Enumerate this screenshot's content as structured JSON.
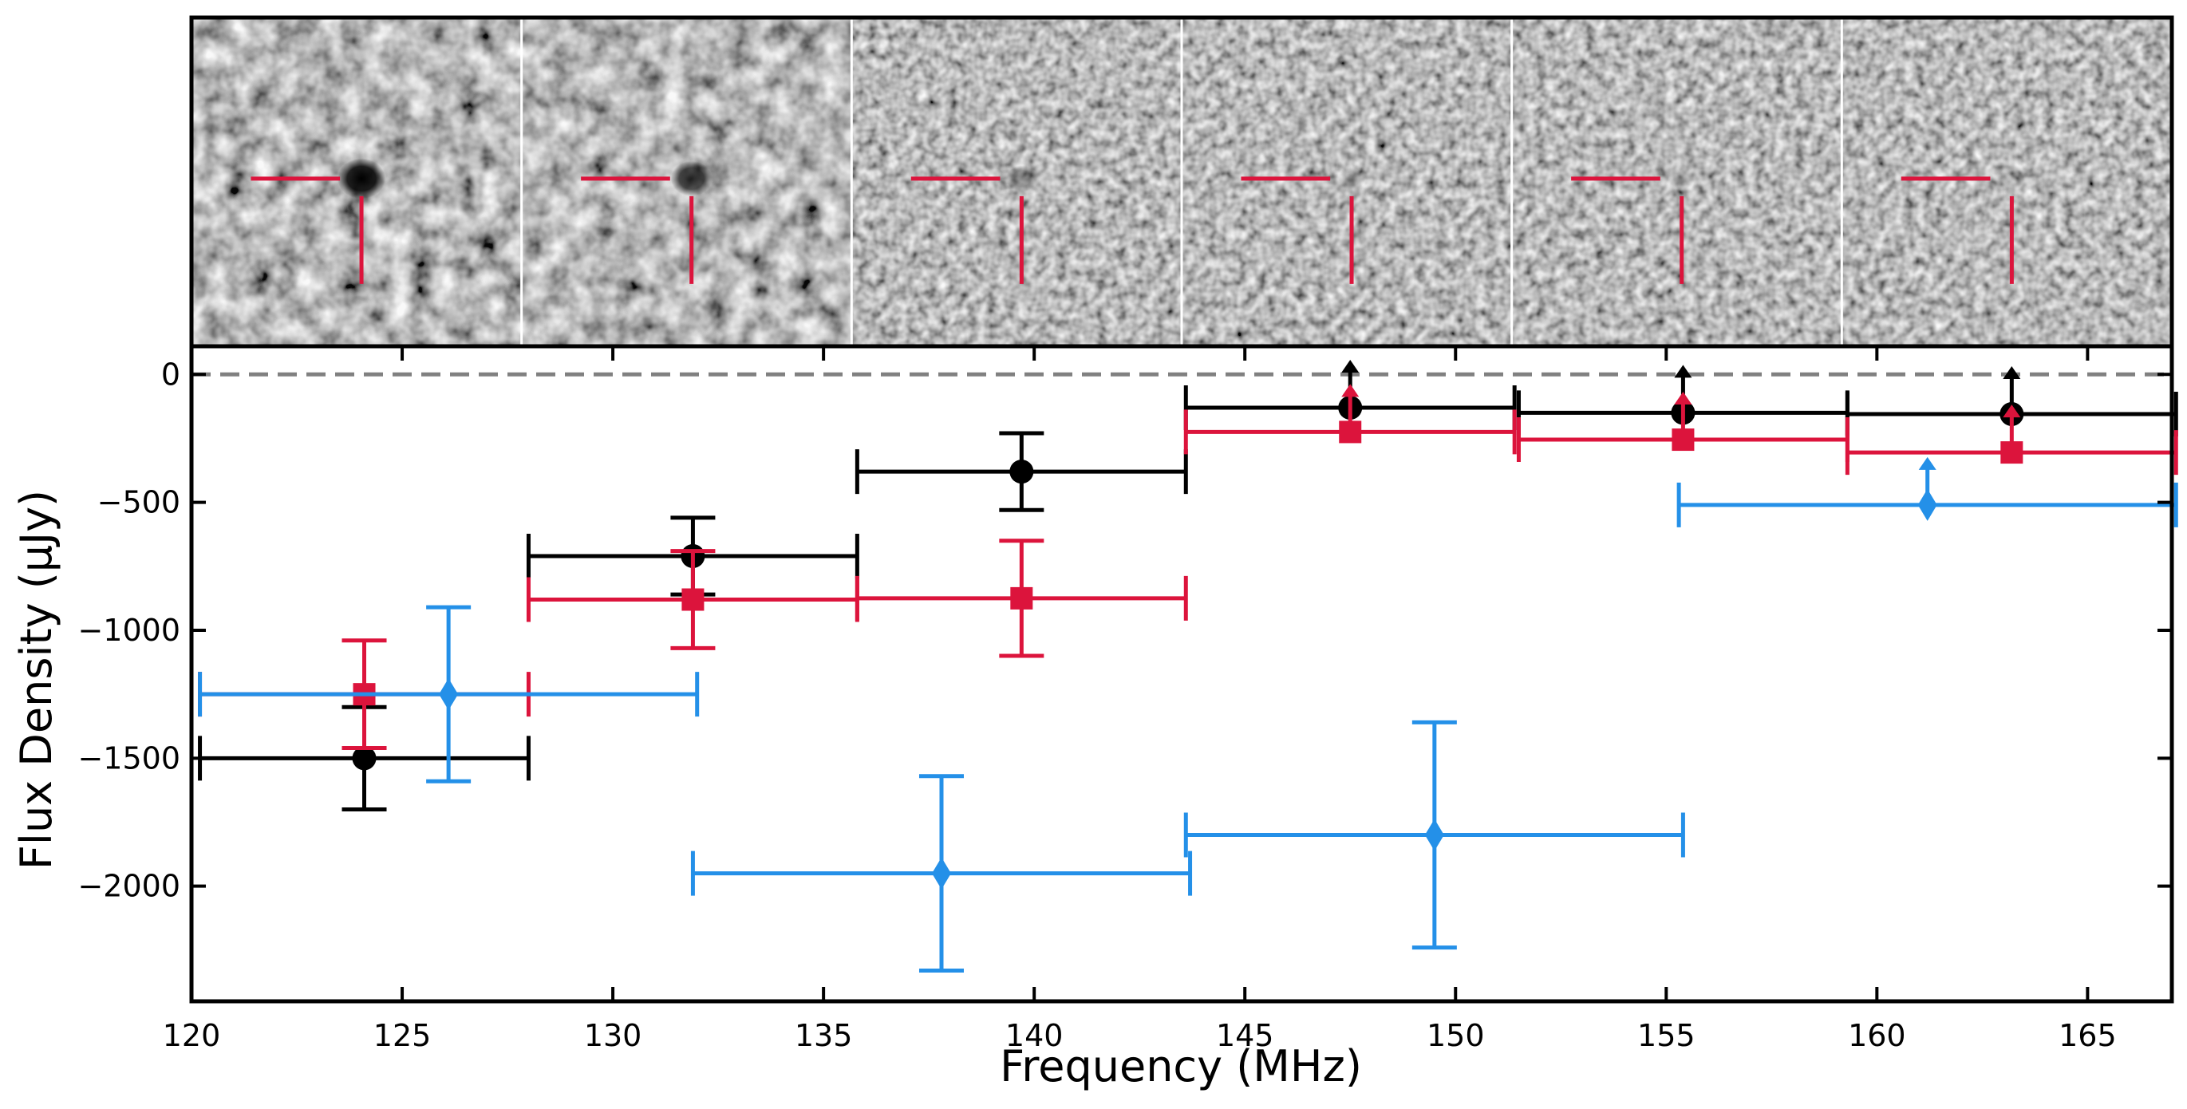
{
  "chart_data": {
    "type": "scatter",
    "title": "",
    "xlabel": "Frequency (MHz)",
    "ylabel": "Flux Density (μJy)",
    "xlim": [
      120,
      167
    ],
    "ylim": [
      -2450,
      110
    ],
    "xticks": [
      120,
      125,
      130,
      135,
      140,
      145,
      150,
      155,
      160,
      165
    ],
    "yticks": [
      0,
      -500,
      -1000,
      -1500,
      -2000
    ],
    "xtick_labels": [
      "120",
      "125",
      "130",
      "135",
      "140",
      "145",
      "150",
      "155",
      "160",
      "165"
    ],
    "ytick_labels": [
      "0",
      "−500",
      "−1000",
      "−1500",
      "−2000"
    ],
    "zero_line": 0,
    "grid": false,
    "legend": "none",
    "series": [
      {
        "color": "#000000",
        "marker": "circle",
        "points": [
          {
            "x": 124.1,
            "y": -1500,
            "xerr": 3.9,
            "yerr_low": 200,
            "yerr_high": 200
          },
          {
            "x": 131.9,
            "y": -710,
            "xerr": 3.9,
            "yerr_low": 150,
            "yerr_high": 150
          },
          {
            "x": 139.7,
            "y": -380,
            "xerr": 3.9,
            "yerr_low": 150,
            "yerr_high": 150
          },
          {
            "x": 147.5,
            "y": -130,
            "xerr": 3.9,
            "upper_limit": true
          },
          {
            "x": 155.4,
            "y": -150,
            "xerr": 3.9,
            "upper_limit": true
          },
          {
            "x": 163.2,
            "y": -155,
            "xerr": 3.9,
            "upper_limit": true
          }
        ]
      },
      {
        "color": "#dc143c",
        "marker": "square",
        "points": [
          {
            "x": 124.1,
            "y": -1250,
            "xerr": 3.9,
            "yerr_low": 210,
            "yerr_high": 210
          },
          {
            "x": 131.9,
            "y": -880,
            "xerr": 3.9,
            "yerr_low": 190,
            "yerr_high": 190
          },
          {
            "x": 139.7,
            "y": -875,
            "xerr": 3.9,
            "yerr_low": 225,
            "yerr_high": 225
          },
          {
            "x": 147.5,
            "y": -225,
            "xerr": 3.9,
            "upper_limit": true
          },
          {
            "x": 155.4,
            "y": -255,
            "xerr": 3.9,
            "upper_limit": true
          },
          {
            "x": 163.2,
            "y": -305,
            "xerr": 3.9,
            "upper_limit": true
          }
        ]
      },
      {
        "color": "#2490e8",
        "marker": "diamond",
        "points": [
          {
            "x": 126.1,
            "y": -1250,
            "xerr": 5.9,
            "yerr_low": 340,
            "yerr_high": 340
          },
          {
            "x": 137.8,
            "y": -1950,
            "xerr": 5.9,
            "yerr_low": 380,
            "yerr_high": 380
          },
          {
            "x": 149.5,
            "y": -1800,
            "xerr": 5.9,
            "yerr_low": 440,
            "yerr_high": 440
          },
          {
            "x": 161.2,
            "y": -510,
            "xerr": 5.9,
            "upper_limit": true
          }
        ]
      }
    ],
    "image_strip": {
      "panels": 6,
      "marker_color": "#dc143c",
      "source_darkness": [
        1.0,
        0.75,
        0.35,
        0.2,
        0.15,
        0.12
      ]
    }
  }
}
